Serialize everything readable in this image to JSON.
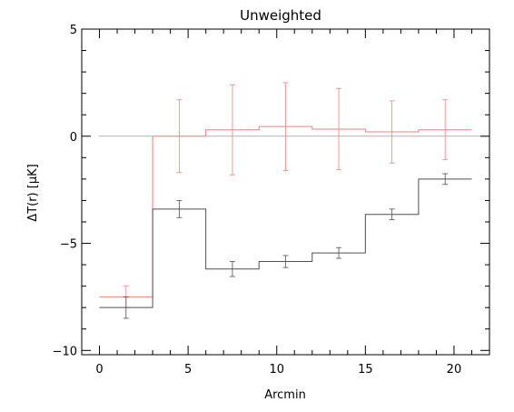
{
  "chart_data": {
    "type": "line",
    "title": "Unweighted",
    "xlabel": "Arcmin",
    "ylabel": "ΔT(r) [μK]",
    "xlim": [
      -1,
      22
    ],
    "ylim": [
      -10.2,
      5
    ],
    "x_ticks": [
      0,
      5,
      10,
      15,
      20
    ],
    "y_ticks": [
      -10,
      -5,
      0,
      5
    ],
    "zero_line": 0,
    "grid": false,
    "legend": "none",
    "series": [
      {
        "color": "#f08080",
        "style": "step",
        "bin_edges": [
          0,
          3,
          6,
          9,
          12,
          15,
          18,
          21
        ],
        "x": [
          1.5,
          4.5,
          7.5,
          10.5,
          13.5,
          16.5,
          19.5
        ],
        "y": [
          -7.5,
          0.0,
          0.3,
          0.45,
          0.33,
          0.2,
          0.3
        ],
        "err": [
          0.5,
          1.7,
          2.1,
          2.05,
          1.9,
          1.45,
          1.4
        ]
      },
      {
        "color": "#505050",
        "style": "step",
        "bin_edges": [
          0,
          3,
          6,
          9,
          12,
          15,
          18,
          21
        ],
        "x": [
          1.5,
          4.5,
          7.5,
          10.5,
          13.5,
          16.5,
          19.5
        ],
        "y": [
          -8.0,
          -3.4,
          -6.2,
          -5.85,
          -5.45,
          -3.65,
          -2.0
        ],
        "err": [
          0.5,
          0.4,
          0.35,
          0.28,
          0.25,
          0.25,
          0.25
        ]
      }
    ]
  }
}
